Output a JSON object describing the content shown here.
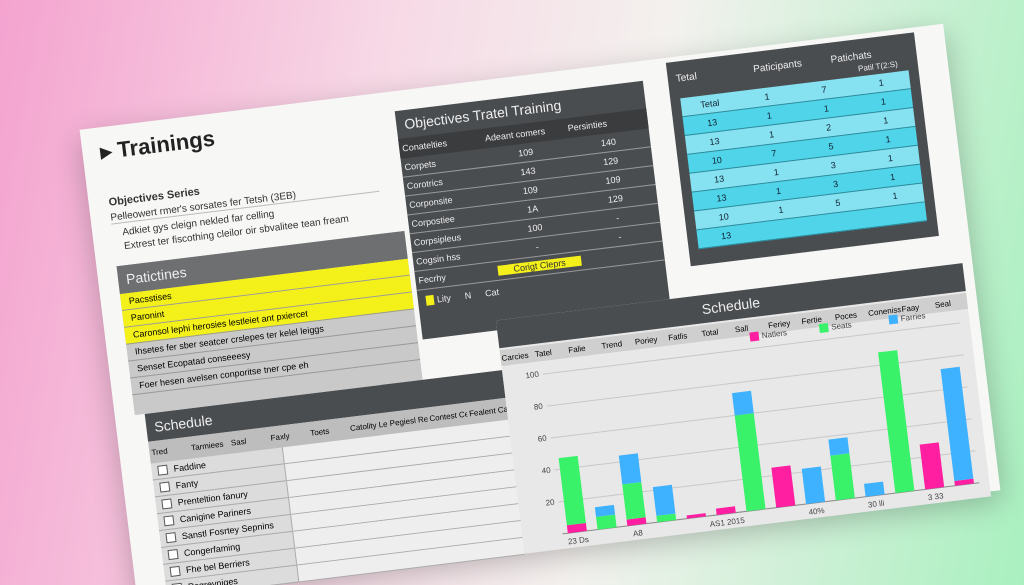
{
  "header": {
    "title": "Trainings"
  },
  "objectives": {
    "title": "Objectives Series",
    "subtitle": "Pelleowert rmer's sorsates fer Tetsh (3EB)",
    "items": [
      "Adkiet gys cleign nekled far celling",
      "Extrest ter fiscothing cleilor oir sbvalitee tean fream"
    ]
  },
  "participants": {
    "title": "Patictines",
    "rows": [
      "Pacsstises",
      "Paronint",
      "Caronsol lephi herosies lestleiet ant pxiercet",
      "Ihsetes fer sber seatcer crslepes ter kelel leiggs",
      "Senset Ecopatad conseeesy",
      "Foer hesen avelsen conporitse tner cpe eh"
    ],
    "highlight": [
      true,
      true,
      true,
      false,
      false,
      false
    ]
  },
  "objectives_table": {
    "title": "Objectives Tratel Training",
    "columns": [
      "Conatelties",
      "Adeant comers",
      "Persinties"
    ],
    "rows": [
      [
        "Corpets",
        "109",
        "140"
      ],
      [
        "Corotrics",
        "143",
        "129"
      ],
      [
        "Corponsite",
        "109",
        "109"
      ],
      [
        "Corpostiee",
        "1A",
        "129"
      ],
      [
        "Corpsipleus",
        "100",
        "-"
      ],
      [
        "Cogsin hss",
        "-",
        "-"
      ],
      [
        "Fecrhy",
        "Corigt Cleprs",
        ""
      ]
    ],
    "footer": [
      "Lity",
      "N",
      "Cat"
    ]
  },
  "total_table": {
    "label": "Tetal",
    "columns": [
      "Paticipants",
      "Patichats"
    ],
    "sub": "Patil T(2:S)",
    "rows": [
      [
        "Tetal",
        "1",
        "7",
        "1"
      ],
      [
        "13",
        "1",
        "1",
        "1"
      ],
      [
        "13",
        "1",
        "2",
        "1"
      ],
      [
        "10",
        "7",
        "5",
        "1"
      ],
      [
        "13",
        "1",
        "3",
        "1"
      ],
      [
        "13",
        "1",
        "3",
        "1"
      ],
      [
        "10",
        "1",
        "5",
        "1"
      ],
      [
        "13",
        "",
        "",
        ""
      ]
    ]
  },
  "schedule_left": {
    "title": "Schedule",
    "columns": [
      "Tred",
      "Tarmiees",
      "Sasl",
      "Faxly",
      "Toets",
      "Catolity Leasty",
      "Pegiesl Reglsiers",
      "Contest Cengss lue",
      "Fealent Capel Lee"
    ],
    "rows": [
      "Faddine",
      "Fanty",
      "Prenteltion fanury",
      "Canigine Pariners",
      "Sanstl Fosrtey Sepnins",
      "Congerfaming",
      "Fhe bel Berriers",
      "Poqrevniges"
    ]
  },
  "schedule_chart": {
    "title": "Schedule",
    "columns": [
      "Carcies",
      "Tatel",
      "Falie",
      "Trend",
      "Poriey",
      "Fatlis",
      "Total",
      "Sall",
      "Feriey",
      "Fertie",
      "Poces",
      "Coneniss legtly",
      "Faay",
      "Seal"
    ],
    "chart_data": {
      "type": "bar",
      "stacked": true,
      "categories": [
        "23 Ds",
        null,
        "A8",
        null,
        null,
        "AS1 2015",
        null,
        null,
        "40%",
        null,
        "30 lli",
        null,
        "3 33",
        null
      ],
      "series": [
        {
          "name": "Natlers",
          "color": "#ff1fa0",
          "values": [
            5,
            0,
            4,
            0,
            2,
            4,
            0,
            25,
            0,
            0,
            0,
            0,
            28,
            3
          ]
        },
        {
          "name": "Seats",
          "color": "#39f26a",
          "values": [
            42,
            8,
            22,
            4,
            0,
            0,
            60,
            0,
            0,
            28,
            0,
            88,
            0,
            0
          ]
        },
        {
          "name": "Farries",
          "color": "#3fb2ff",
          "values": [
            0,
            6,
            18,
            18,
            0,
            0,
            14,
            0,
            22,
            10,
            8,
            0,
            0,
            70
          ]
        }
      ],
      "ylim": [
        0,
        100
      ],
      "yticks": [
        20,
        40,
        60,
        80,
        100
      ],
      "grid": true
    }
  }
}
